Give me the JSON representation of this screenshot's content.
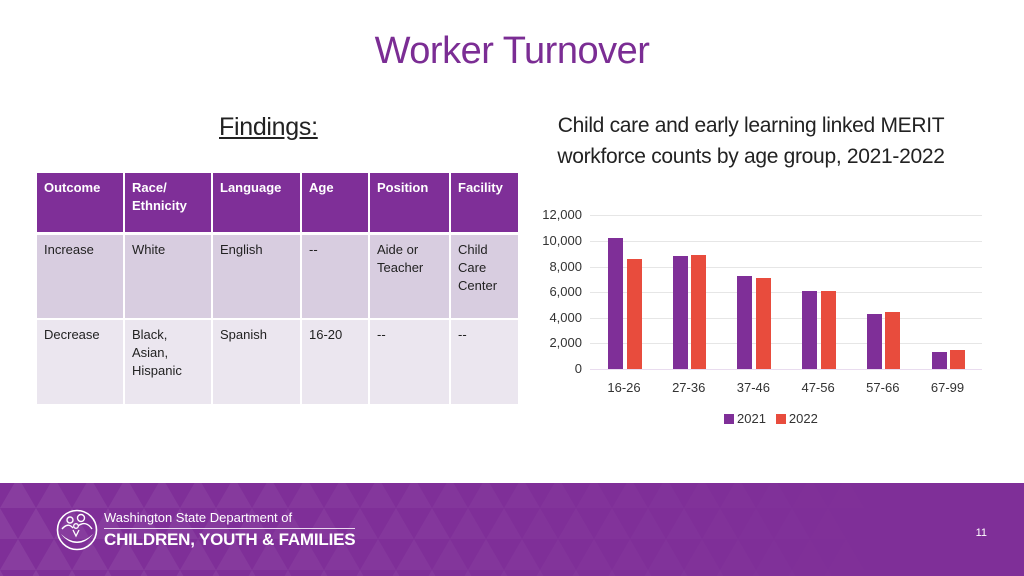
{
  "slide": {
    "title": "Worker Turnover",
    "findings_heading": "Findings:",
    "chart_heading_line1": "Child care and early learning linked MERIT",
    "chart_heading_line2": "workforce counts by age group, 2021-2022",
    "page_number": "11"
  },
  "table": {
    "headers": [
      "Outcome",
      "Race/ Ethnicity",
      "Language",
      "Age",
      "Position",
      "Facility"
    ],
    "rows": [
      [
        "Increase",
        "White",
        "English",
        "--",
        "Aide or Teacher",
        "Child Care Center"
      ],
      [
        "Decrease",
        "Black, Asian, Hispanic",
        "Spanish",
        "16-20",
        "--",
        "--"
      ]
    ]
  },
  "footer": {
    "org_line1": "Washington State Department of",
    "org_line2": "CHILDREN, YOUTH & FAMILIES",
    "background_color": "#7f2f98"
  },
  "colors": {
    "accent_purple": "#7f2f98",
    "title_purple": "#7b2d94",
    "series_2021": "#7f2f98",
    "series_2022": "#e84c3d"
  },
  "chart_data": {
    "type": "bar",
    "title": "Child care and early learning linked MERIT workforce counts by age group, 2021-2022",
    "xlabel": "",
    "ylabel": "",
    "categories": [
      "16-26",
      "27-36",
      "37-46",
      "47-56",
      "57-66",
      "67-99"
    ],
    "series": [
      {
        "name": "2021",
        "color": "#7f2f98",
        "values": [
          10200,
          8800,
          7300,
          6100,
          4270,
          1330
        ]
      },
      {
        "name": "2022",
        "color": "#e84c3d",
        "values": [
          8600,
          8900,
          7130,
          6100,
          4430,
          1480
        ]
      }
    ],
    "yticks": [
      "0",
      "2,000",
      "4,000",
      "6,000",
      "8,000",
      "10,000",
      "12,000"
    ],
    "ylim": [
      0,
      12000
    ],
    "grid": true,
    "legend_position": "bottom"
  }
}
